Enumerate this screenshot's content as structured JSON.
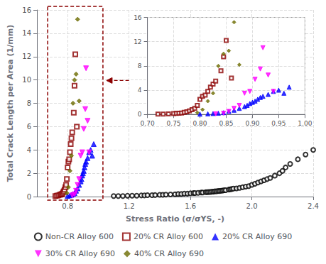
{
  "chart_data": [
    {
      "type": "scatter",
      "xlabel": "Stress Ratio (σ/σYS, -)",
      "ylabel": "Total Crack Length per Area (1/mm)",
      "xlim": [
        0.6,
        2.4
      ],
      "ylim": [
        0,
        16
      ],
      "xticks": [
        0.8,
        1.2,
        1.6,
        {
          "value": 2,
          "label": "2.0"
        },
        2.4
      ],
      "yticks": [
        0,
        2,
        4,
        6,
        8,
        10,
        12,
        14,
        16
      ],
      "grid": true,
      "legend": "bottom",
      "highlight_box": {
        "x": [
          0.67,
          1.03
        ],
        "y": [
          -0.3,
          16.3
        ],
        "color": "#8B0000",
        "line_style": "dashed"
      },
      "series": [
        {
          "name": "Non-CR Alloy 600",
          "color": "black",
          "marker": "open_circle",
          "x": [
            1.1,
            1.13,
            1.16,
            1.19,
            1.22,
            1.25,
            1.28,
            1.3,
            1.32,
            1.35,
            1.37,
            1.4,
            1.42,
            1.44,
            1.47,
            1.5,
            1.52,
            1.54,
            1.56,
            1.58,
            1.6,
            1.62,
            1.63,
            1.65,
            1.67,
            1.68,
            1.7,
            1.71,
            1.72,
            1.73,
            1.74,
            1.75,
            1.76,
            1.77,
            1.78,
            1.79,
            1.8,
            1.81,
            1.82,
            1.83,
            1.85,
            1.86,
            1.87,
            1.88,
            1.9,
            1.92,
            1.94,
            1.96,
            1.98,
            2.0,
            2.02,
            2.04,
            2.06,
            2.08,
            2.1,
            2.12,
            2.15,
            2.18,
            2.2,
            2.22,
            2.25,
            2.3,
            2.35,
            2.4
          ],
          "values": [
            0.05,
            0.05,
            0.05,
            0.07,
            0.08,
            0.08,
            0.1,
            0.1,
            0.12,
            0.12,
            0.13,
            0.15,
            0.15,
            0.17,
            0.18,
            0.2,
            0.22,
            0.22,
            0.25,
            0.25,
            0.28,
            0.3,
            0.3,
            0.32,
            0.35,
            0.35,
            0.38,
            0.38,
            0.4,
            0.4,
            0.42,
            0.42,
            0.45,
            0.45,
            0.48,
            0.48,
            0.5,
            0.52,
            0.55,
            0.55,
            0.6,
            0.62,
            0.65,
            0.68,
            0.7,
            0.75,
            0.8,
            0.85,
            0.9,
            1.0,
            1.1,
            1.2,
            1.3,
            1.4,
            1.5,
            1.6,
            1.8,
            2.0,
            2.2,
            2.5,
            2.8,
            3.2,
            3.6,
            4.0
          ]
        },
        {
          "name": "20% CR Alloy 600",
          "color": "#8B0000",
          "marker": "open_square",
          "x": [
            0.72,
            0.73,
            0.74,
            0.75,
            0.755,
            0.76,
            0.765,
            0.77,
            0.775,
            0.78,
            0.785,
            0.79,
            0.795,
            0.8,
            0.805,
            0.81,
            0.815,
            0.82,
            0.825,
            0.83,
            0.84,
            0.845,
            0.85,
            0.86
          ],
          "values": [
            0.05,
            0.07,
            0.1,
            0.15,
            0.18,
            0.2,
            0.25,
            0.35,
            0.45,
            0.6,
            0.8,
            1.0,
            1.5,
            2.5,
            3.0,
            3.2,
            3.8,
            4.5,
            5.0,
            5.5,
            7.2,
            9.5,
            12.2,
            6.0
          ]
        },
        {
          "name": "20% CR Alloy 690",
          "color": "blue",
          "marker": "triangle_up",
          "x": [
            0.8,
            0.815,
            0.825,
            0.835,
            0.845,
            0.855,
            0.865,
            0.875,
            0.885,
            0.89,
            0.895,
            0.9,
            0.905,
            0.91,
            0.915,
            0.92,
            0.93,
            0.94,
            0.95,
            0.96,
            0.97
          ],
          "values": [
            0.05,
            0.1,
            0.15,
            0.2,
            0.3,
            0.5,
            0.7,
            1.0,
            1.3,
            1.5,
            1.8,
            2.0,
            2.2,
            2.5,
            2.8,
            3.0,
            3.3,
            3.8,
            4.0,
            3.5,
            4.5
          ]
        },
        {
          "name": "30% CR Alloy 690",
          "color": "magenta",
          "marker": "triangle_down",
          "x": [
            0.83,
            0.845,
            0.855,
            0.865,
            0.875,
            0.885,
            0.895,
            0.905,
            0.915,
            0.92,
            0.93,
            0.94
          ],
          "values": [
            0.1,
            0.2,
            0.5,
            1.0,
            1.5,
            3.5,
            3.8,
            5.8,
            7.5,
            11.0,
            6.5,
            3.8
          ]
        },
        {
          "name": "40% CR Alloy 690",
          "color": "#6B6B00",
          "marker": "diamond",
          "x": [
            0.795,
            0.805,
            0.815,
            0.825,
            0.835,
            0.845,
            0.855,
            0.865,
            0.875
          ],
          "values": [
            0.3,
            0.8,
            2.2,
            3.5,
            8.0,
            10.0,
            10.5,
            15.2,
            8.2
          ]
        }
      ]
    },
    {
      "type": "scatter",
      "xlim": [
        0.7,
        1.0
      ],
      "ylim": [
        0,
        16
      ],
      "xticks": [
        {
          "value": 0.7,
          "label": "0.70"
        },
        0.75,
        {
          "value": 0.8,
          "label": "0.80"
        },
        0.85,
        {
          "value": 0.9,
          "label": "0.90"
        },
        0.95,
        {
          "value": 1,
          "label": "1.00"
        }
      ],
      "yticks": [
        0,
        4,
        8,
        12,
        16
      ],
      "grid": true,
      "series": [
        {
          "name": "20% CR Alloy 600",
          "color": "#8B0000",
          "marker": "open_square",
          "x": [
            0.72,
            0.73,
            0.74,
            0.75,
            0.755,
            0.76,
            0.765,
            0.77,
            0.775,
            0.78,
            0.785,
            0.79,
            0.795,
            0.8,
            0.805,
            0.81,
            0.815,
            0.82,
            0.825,
            0.83,
            0.84,
            0.845,
            0.85,
            0.86
          ],
          "values": [
            0.05,
            0.07,
            0.1,
            0.15,
            0.18,
            0.2,
            0.25,
            0.35,
            0.45,
            0.6,
            0.8,
            1.0,
            1.5,
            2.5,
            3.0,
            3.2,
            3.8,
            4.5,
            5.0,
            5.5,
            7.2,
            9.5,
            12.2,
            6.0
          ]
        },
        {
          "name": "20% CR Alloy 690",
          "color": "blue",
          "marker": "triangle_up",
          "x": [
            0.8,
            0.815,
            0.825,
            0.835,
            0.845,
            0.855,
            0.865,
            0.875,
            0.885,
            0.89,
            0.895,
            0.9,
            0.905,
            0.91,
            0.915,
            0.92,
            0.93,
            0.94,
            0.95,
            0.96,
            0.97
          ],
          "values": [
            0.05,
            0.1,
            0.15,
            0.2,
            0.3,
            0.5,
            0.7,
            1.0,
            1.3,
            1.5,
            1.8,
            2.0,
            2.2,
            2.5,
            2.8,
            3.0,
            3.3,
            3.8,
            4.0,
            3.5,
            4.5
          ]
        },
        {
          "name": "30% CR Alloy 690",
          "color": "magenta",
          "marker": "triangle_down",
          "x": [
            0.83,
            0.845,
            0.855,
            0.865,
            0.875,
            0.885,
            0.895,
            0.905,
            0.915,
            0.92,
            0.93,
            0.94
          ],
          "values": [
            0.1,
            0.2,
            0.5,
            1.0,
            1.5,
            3.5,
            3.8,
            5.8,
            7.5,
            11.0,
            6.5,
            3.8
          ]
        },
        {
          "name": "40% CR Alloy 690",
          "color": "#6B6B00",
          "marker": "diamond",
          "x": [
            0.795,
            0.805,
            0.815,
            0.825,
            0.835,
            0.845,
            0.855,
            0.865,
            0.875
          ],
          "values": [
            0.3,
            0.8,
            2.2,
            3.5,
            8.0,
            10.0,
            10.5,
            15.2,
            8.2
          ]
        }
      ]
    }
  ]
}
